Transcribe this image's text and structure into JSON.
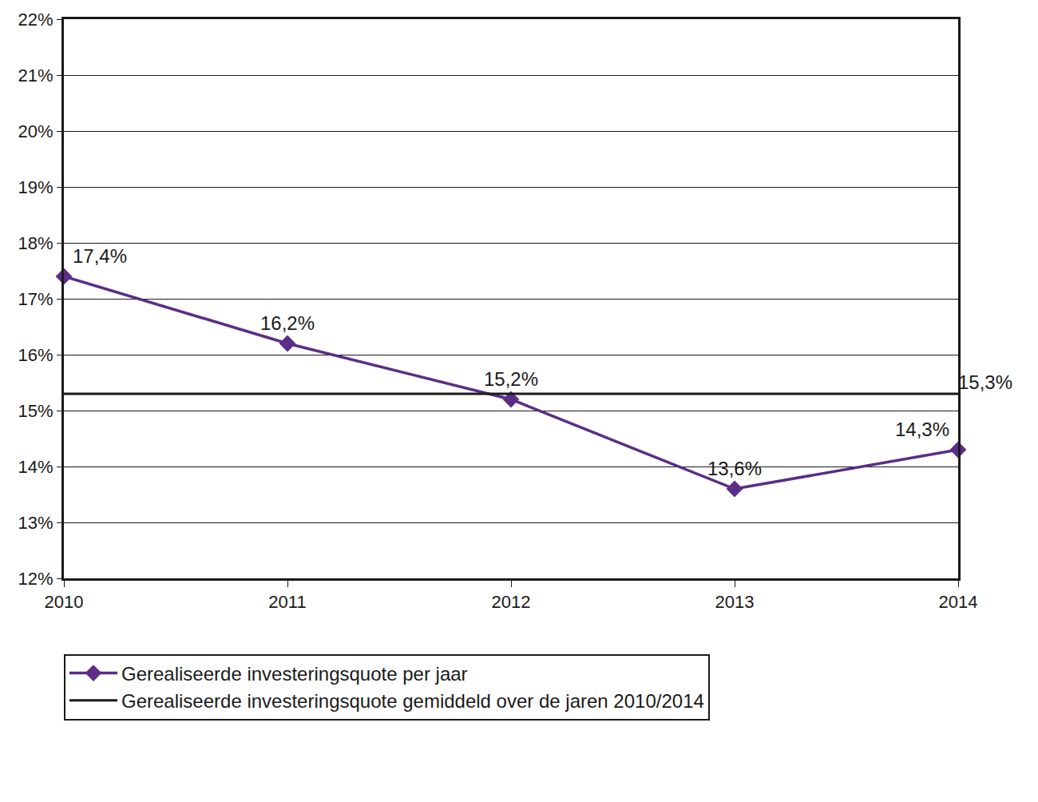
{
  "chart_data": {
    "type": "line",
    "categories": [
      "2010",
      "2011",
      "2012",
      "2013",
      "2014"
    ],
    "series": [
      {
        "name": "Gerealiseerde investeringsquote per jaar",
        "color": "#5b2d86",
        "marker": "diamond",
        "line_style": "solid",
        "values": [
          17.4,
          16.2,
          15.2,
          13.6,
          14.3
        ],
        "value_labels": [
          "17,4%",
          "16,2%",
          "15,2%",
          "13,6%",
          "14,3%"
        ]
      },
      {
        "name": "Gerealiseerde investeringsquote gemiddeld over de jaren 2010/2014",
        "color": "#1a1a1a",
        "marker": "none",
        "line_style": "solid",
        "values": [
          15.3,
          15.3,
          15.3,
          15.3,
          15.3
        ],
        "value_labels": [
          null,
          null,
          null,
          null,
          "15,3%"
        ]
      }
    ],
    "ylim": [
      12,
      22
    ],
    "yticks": [
      {
        "value": 12,
        "label": "12%"
      },
      {
        "value": 13,
        "label": "13%"
      },
      {
        "value": 14,
        "label": "14%"
      },
      {
        "value": 15,
        "label": "15%"
      },
      {
        "value": 16,
        "label": "16%"
      },
      {
        "value": 17,
        "label": "17%"
      },
      {
        "value": 18,
        "label": "18%"
      },
      {
        "value": 19,
        "label": "19%"
      },
      {
        "value": 20,
        "label": "20%"
      },
      {
        "value": 21,
        "label": "21%"
      },
      {
        "value": 22,
        "label": "22%"
      }
    ],
    "grid": true,
    "data_labels": true,
    "legend": "bottom"
  }
}
